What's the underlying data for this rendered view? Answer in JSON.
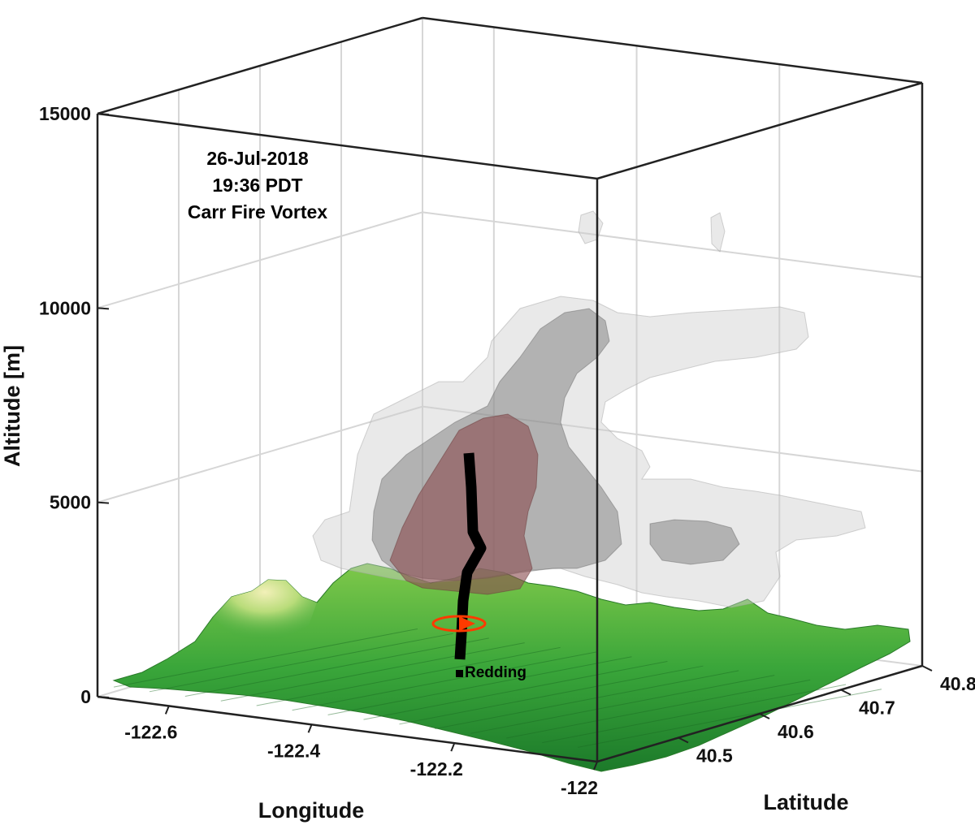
{
  "chart_data": {
    "type": "3d-surface",
    "annotation": [
      "26-Jul-2018",
      "19:36 PDT",
      "Carr Fire Vortex"
    ],
    "xlabel": "Longitude",
    "ylabel": "Latitude",
    "zlabel": "Altitude [m]",
    "xlim": [
      -122.7,
      -122.0
    ],
    "ylim": [
      40.4,
      40.8
    ],
    "zlim": [
      0,
      15000
    ],
    "x_ticks": [
      -122.6,
      -122.4,
      -122.2,
      -122
    ],
    "x_tick_labels": [
      "-122.6",
      "-122.4",
      "-122.2",
      "-122"
    ],
    "y_ticks": [
      40.5,
      40.6,
      40.7,
      40.8
    ],
    "y_tick_labels": [
      "40.5",
      "40.6",
      "40.7",
      "40.8"
    ],
    "z_ticks": [
      0,
      5000,
      10000,
      15000
    ],
    "z_tick_labels": [
      "0",
      "5000",
      "10000",
      "15000"
    ],
    "grid": true,
    "marker": {
      "label": "Redding"
    },
    "colors": {
      "terrain_low": "#1f8a2a",
      "terrain_high": "#e8e8a0",
      "plume_outer": "#d8d8d8",
      "plume_inner": "#7a7a7a",
      "vortex_core": "#8a5555",
      "vortex_line": "#000000",
      "rotation_arrow": "#ff3a00"
    }
  }
}
